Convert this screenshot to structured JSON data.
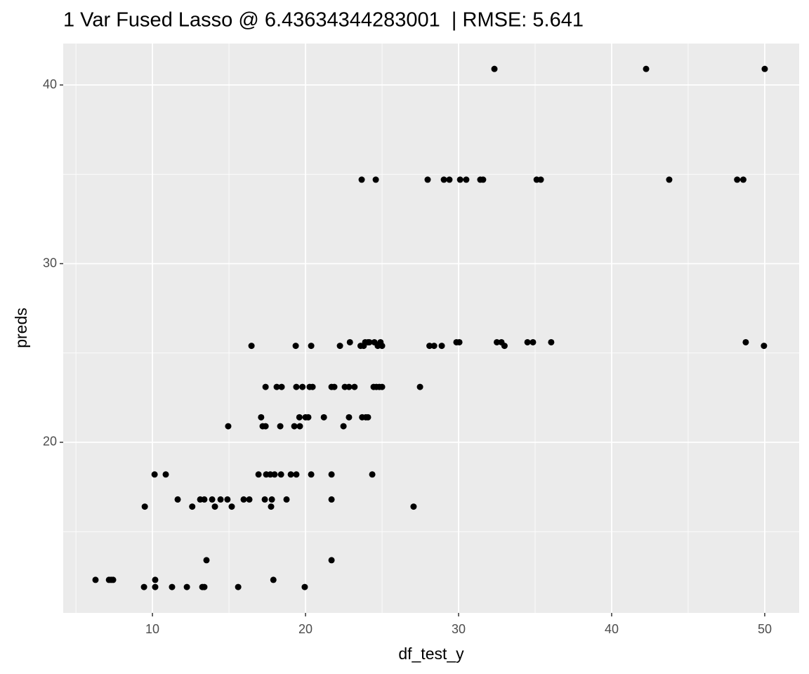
{
  "chart_data": {
    "type": "scatter",
    "title": "1 Var Fused Lasso @ 6.43634344283001  | RMSE: 5.641",
    "x_label": "df_test_y",
    "y_label": "preds",
    "color": "#000000",
    "xlim": [
      4.17,
      52.25
    ],
    "ylim": [
      10.45,
      42.32
    ],
    "xticks": [
      10,
      20,
      30,
      40,
      50
    ],
    "yticks": [
      20,
      30,
      40
    ],
    "xminor": [
      5,
      15,
      25,
      35,
      45
    ],
    "yminor": [
      15,
      25,
      35
    ],
    "grid": true,
    "x": [
      32.34,
      42.25,
      50,
      23.67,
      24.59,
      27.98,
      29.04,
      29.4,
      30.1,
      30.5,
      31.42,
      31.6,
      35.1,
      35.37,
      43.76,
      48.2,
      48.6,
      22.9,
      23.9,
      24.08,
      24.17,
      24.5,
      24.9,
      29.86,
      30.05,
      32.5,
      32.8,
      34.5,
      34.86,
      36.05,
      48.76,
      16.47,
      19.36,
      20.37,
      22.25,
      23.6,
      23.8,
      24.72,
      25.0,
      28.1,
      28.4,
      28.9,
      33.0,
      49.95,
      17.39,
      18.12,
      18.44,
      19.4,
      19.8,
      20.27,
      20.46,
      21.7,
      21.88,
      22.57,
      22.84,
      23.2,
      24.45,
      24.63,
      24.82,
      25.0,
      27.48,
      17.1,
      19.6,
      20.0,
      20.18,
      21.2,
      22.84,
      23.7,
      23.94,
      24.08,
      14.95,
      17.2,
      17.39,
      18.35,
      19.27,
      19.63,
      22.48,
      10.14,
      10.87,
      16.93,
      17.43,
      17.7,
      17.98,
      18.4,
      19.04,
      19.4,
      20.37,
      21.7,
      24.36,
      11.65,
      13.12,
      13.39,
      13.9,
      14.45,
      14.9,
      15.96,
      16.33,
      17.34,
      17.8,
      18.76,
      21.7,
      9.5,
      12.6,
      14.08,
      15.18,
      17.75,
      27.06,
      13.53,
      21.7,
      6.28,
      7.16,
      7.3,
      7.43,
      10.18,
      17.9,
      9.45,
      10.18,
      11.28,
      12.25,
      13.26,
      13.39,
      15.6,
      19.95
    ],
    "values": [
      40.9,
      40.9,
      40.9,
      34.7,
      34.7,
      34.7,
      34.7,
      34.7,
      34.7,
      34.7,
      34.7,
      34.7,
      34.7,
      34.7,
      34.7,
      34.7,
      34.7,
      25.6,
      25.6,
      25.6,
      25.6,
      25.6,
      25.6,
      25.6,
      25.6,
      25.6,
      25.6,
      25.6,
      25.6,
      25.6,
      25.6,
      25.4,
      25.4,
      25.4,
      25.4,
      25.4,
      25.4,
      25.4,
      25.4,
      25.4,
      25.4,
      25.4,
      25.4,
      25.4,
      23.1,
      23.1,
      23.1,
      23.1,
      23.1,
      23.1,
      23.1,
      23.1,
      23.1,
      23.1,
      23.1,
      23.1,
      23.1,
      23.1,
      23.1,
      23.1,
      23.1,
      21.4,
      21.4,
      21.4,
      21.4,
      21.4,
      21.4,
      21.4,
      21.4,
      21.4,
      20.9,
      20.9,
      20.9,
      20.9,
      20.9,
      20.9,
      20.9,
      18.2,
      18.2,
      18.2,
      18.2,
      18.2,
      18.2,
      18.2,
      18.2,
      18.2,
      18.2,
      18.2,
      18.2,
      16.8,
      16.8,
      16.8,
      16.8,
      16.8,
      16.8,
      16.8,
      16.8,
      16.8,
      16.8,
      16.8,
      16.8,
      16.4,
      16.4,
      16.4,
      16.4,
      16.4,
      16.4,
      13.4,
      13.4,
      12.3,
      12.3,
      12.3,
      12.3,
      12.3,
      12.3,
      11.9,
      11.9,
      11.9,
      11.9,
      11.9,
      11.9,
      11.9,
      11.9
    ]
  }
}
